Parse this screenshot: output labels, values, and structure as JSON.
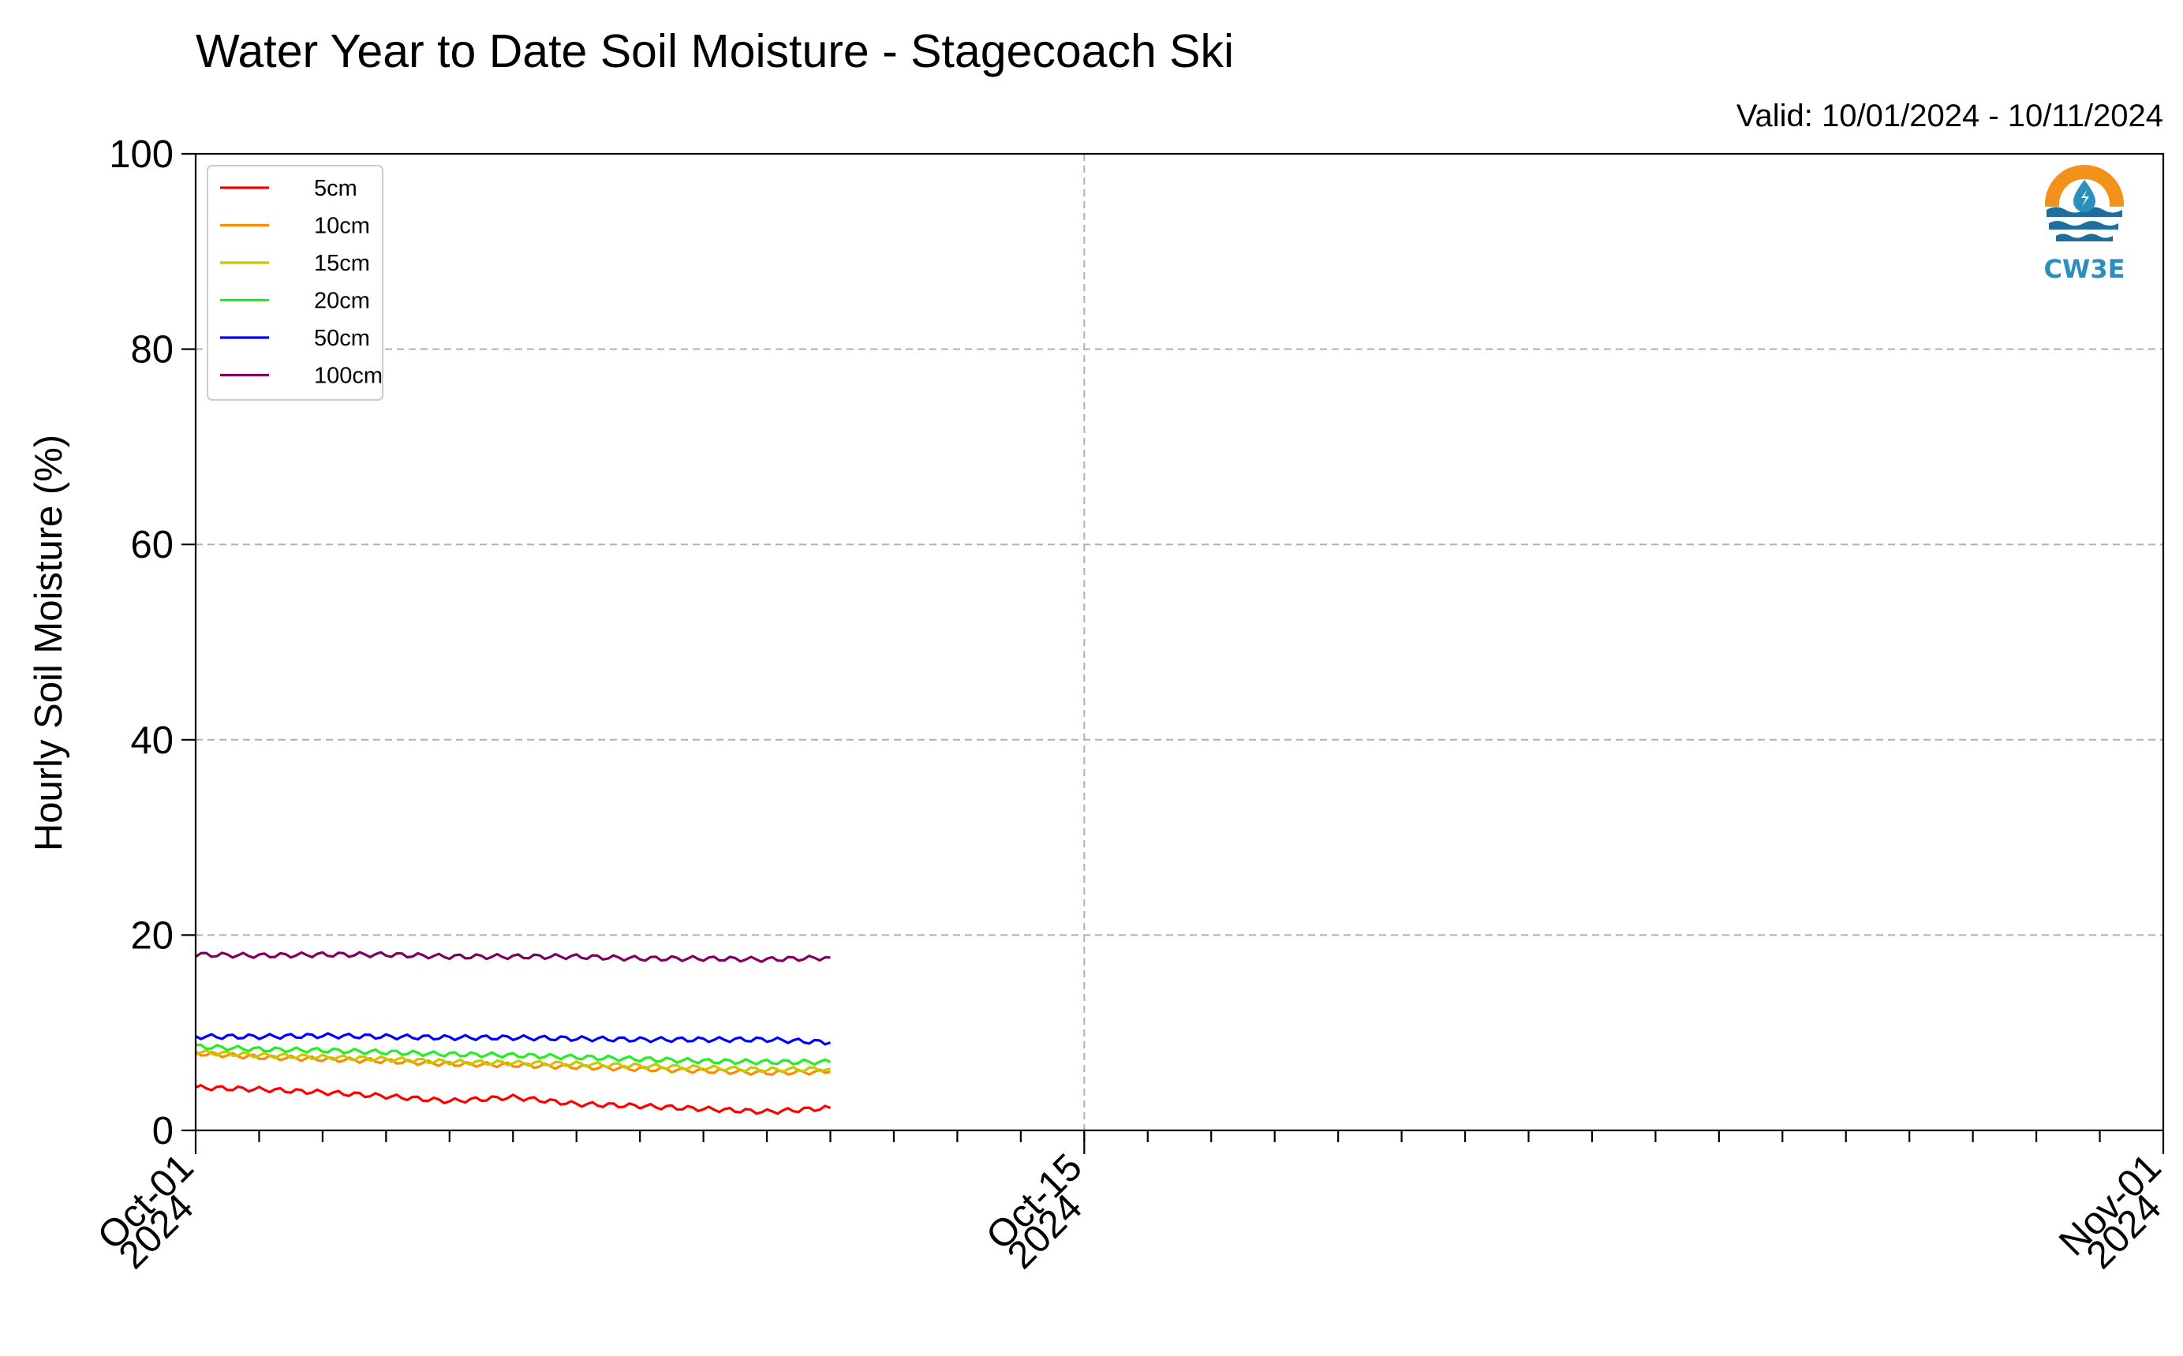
{
  "chart_data": {
    "type": "line",
    "title": "Water Year to Date Soil Moisture - Stagecoach Ski",
    "subtitle": "Valid: 10/01/2024 - 10/11/2024",
    "ylabel": "Hourly Soil Moisture (%)",
    "xlabel": "",
    "ylim": [
      0,
      100
    ],
    "yticks": [
      0,
      20,
      40,
      60,
      80,
      100
    ],
    "xlim": [
      "2024-10-01",
      "2024-11-01"
    ],
    "xticks": [
      {
        "date": "2024-10-01",
        "line1": "Oct-01",
        "line2": "2024"
      },
      {
        "date": "2024-10-15",
        "line1": "Oct-15",
        "line2": "2024"
      },
      {
        "date": "2024-11-01",
        "line1": "Nov-01",
        "line2": "2024"
      }
    ],
    "grid": true,
    "legend_position": "top-left",
    "series": [
      {
        "name": "5cm",
        "color": "#ff0000",
        "x": [
          "2024-10-01",
          "2024-10-02",
          "2024-10-03",
          "2024-10-04",
          "2024-10-05",
          "2024-10-06",
          "2024-10-07",
          "2024-10-08",
          "2024-10-09",
          "2024-10-10",
          "2024-10-11"
        ],
        "y": [
          4.4,
          4.2,
          3.9,
          3.5,
          3.0,
          3.4,
          2.7,
          2.5,
          2.2,
          1.9,
          2.3
        ]
      },
      {
        "name": "10cm",
        "color": "#ff8c00",
        "x": [
          "2024-10-01",
          "2024-10-02",
          "2024-10-03",
          "2024-10-04",
          "2024-10-05",
          "2024-10-06",
          "2024-10-07",
          "2024-10-08",
          "2024-10-09",
          "2024-10-10",
          "2024-10-11"
        ],
        "y": [
          7.9,
          7.5,
          7.3,
          7.1,
          6.8,
          6.7,
          6.5,
          6.3,
          6.1,
          5.9,
          6.0
        ]
      },
      {
        "name": "15cm",
        "color": "#c8c800",
        "x": [
          "2024-10-01",
          "2024-10-02",
          "2024-10-03",
          "2024-10-04",
          "2024-10-05",
          "2024-10-06",
          "2024-10-07",
          "2024-10-08",
          "2024-10-09",
          "2024-10-10",
          "2024-10-11"
        ],
        "y": [
          8.0,
          7.7,
          7.5,
          7.3,
          7.0,
          6.9,
          6.8,
          6.6,
          6.4,
          6.2,
          6.3
        ]
      },
      {
        "name": "20cm",
        "color": "#22ee22",
        "x": [
          "2024-10-01",
          "2024-10-02",
          "2024-10-03",
          "2024-10-04",
          "2024-10-05",
          "2024-10-06",
          "2024-10-07",
          "2024-10-08",
          "2024-10-09",
          "2024-10-10",
          "2024-10-11"
        ],
        "y": [
          8.6,
          8.3,
          8.2,
          8.0,
          7.8,
          7.7,
          7.5,
          7.3,
          7.1,
          7.0,
          7.0
        ]
      },
      {
        "name": "50cm",
        "color": "#0000ff",
        "x": [
          "2024-10-01",
          "2024-10-02",
          "2024-10-03",
          "2024-10-04",
          "2024-10-05",
          "2024-10-06",
          "2024-10-07",
          "2024-10-08",
          "2024-10-09",
          "2024-10-10",
          "2024-10-11"
        ],
        "y": [
          9.6,
          9.6,
          9.7,
          9.6,
          9.5,
          9.5,
          9.4,
          9.3,
          9.3,
          9.3,
          9.0
        ]
      },
      {
        "name": "100cm",
        "color": "#800060",
        "x": [
          "2024-10-01",
          "2024-10-02",
          "2024-10-03",
          "2024-10-04",
          "2024-10-05",
          "2024-10-06",
          "2024-10-07",
          "2024-10-08",
          "2024-10-09",
          "2024-10-10",
          "2024-10-11"
        ],
        "y": [
          18.0,
          17.9,
          18.0,
          18.0,
          17.8,
          17.8,
          17.8,
          17.6,
          17.6,
          17.5,
          17.7
        ]
      }
    ]
  },
  "logo": {
    "text": "CW3E",
    "ring_color": "#f2921c",
    "wave_color": "#1f6d9c",
    "drop_color": "#2a8fbd"
  }
}
